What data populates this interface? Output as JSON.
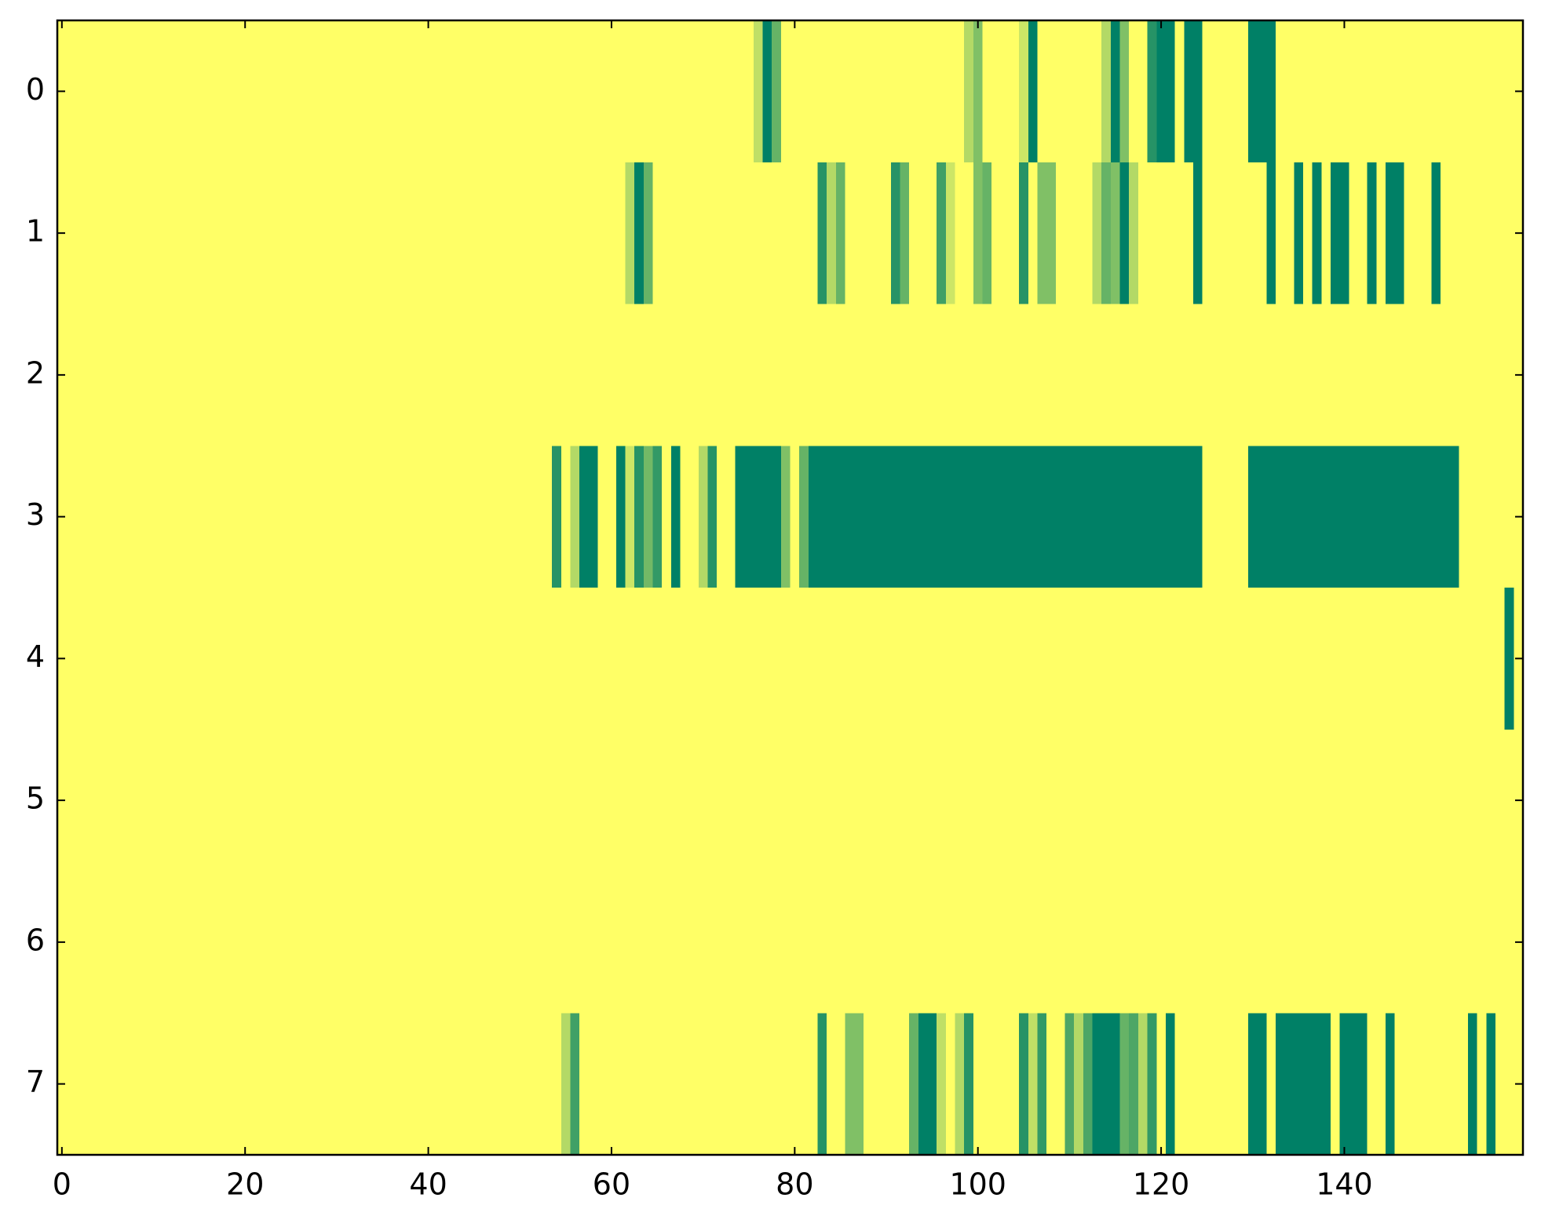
{
  "chart_data": {
    "type": "heatmap",
    "xlim": [
      -0.5,
      159.5
    ],
    "ylim": [
      7.5,
      -0.5
    ],
    "xticks": [
      0,
      20,
      40,
      60,
      80,
      100,
      120,
      140
    ],
    "yticks": [
      0,
      1,
      2,
      3,
      4,
      5,
      6,
      7
    ],
    "colorscale": {
      "low": "#ffff66",
      "high": "#008066"
    },
    "values": [
      [
        0,
        0,
        0,
        0,
        0,
        0,
        0,
        0,
        0,
        0,
        0,
        0,
        0,
        0,
        0,
        0,
        0,
        0,
        0,
        0,
        0,
        0,
        0,
        0,
        0,
        0,
        0,
        0,
        0,
        0,
        0,
        0,
        0,
        0,
        0,
        0,
        0,
        0,
        0,
        0,
        0,
        0,
        0,
        0,
        0,
        0,
        0,
        0,
        0,
        0,
        0,
        0,
        0,
        0,
        0,
        0,
        0,
        0,
        0,
        0,
        0,
        0,
        0,
        0,
        0,
        0,
        0,
        0,
        0,
        0,
        0,
        0,
        0,
        0,
        0,
        0,
        0.25,
        1,
        0.6,
        0,
        0,
        0,
        0,
        0,
        0,
        0,
        0,
        0,
        0,
        0,
        0,
        0,
        0,
        0,
        0,
        0,
        0,
        0,
        0,
        0.3,
        0.5,
        0,
        0,
        0,
        0,
        0.2,
        1,
        0,
        0,
        0,
        0,
        0,
        0,
        0,
        0.3,
        1,
        0.5,
        0,
        0,
        0.85,
        1,
        1,
        0,
        1,
        1,
        0,
        0,
        0,
        0,
        0,
        1,
        1,
        1,
        0,
        0,
        0,
        0,
        0,
        0,
        0,
        0,
        0,
        0,
        0,
        0,
        0,
        0,
        0,
        0,
        0,
        0,
        0,
        0,
        0,
        0,
        0,
        0,
        0,
        0,
        0
      ],
      [
        0,
        0,
        0,
        0,
        0,
        0,
        0,
        0,
        0,
        0,
        0,
        0,
        0,
        0,
        0,
        0,
        0,
        0,
        0,
        0,
        0,
        0,
        0,
        0,
        0,
        0,
        0,
        0,
        0,
        0,
        0,
        0,
        0,
        0,
        0,
        0,
        0,
        0,
        0,
        0,
        0,
        0,
        0,
        0,
        0,
        0,
        0,
        0,
        0,
        0,
        0,
        0,
        0,
        0,
        0,
        0,
        0,
        0,
        0,
        0,
        0,
        0,
        0.3,
        1,
        0.6,
        0,
        0,
        0,
        0,
        0,
        0,
        0,
        0,
        0,
        0,
        0,
        0,
        0,
        0,
        0,
        0,
        0,
        0,
        0.85,
        0.3,
        0.6,
        0,
        0,
        0,
        0,
        0,
        0.85,
        0.6,
        0,
        0,
        0,
        0.75,
        0.2,
        0,
        0,
        0.5,
        0.6,
        0,
        0,
        0,
        0.85,
        0,
        0.5,
        0.5,
        0,
        0,
        0,
        0,
        0.3,
        0.6,
        0.5,
        1,
        0.3,
        0,
        0,
        0,
        0,
        0,
        0,
        1,
        0,
        0,
        0,
        0,
        0,
        0,
        0,
        1,
        0,
        0,
        1,
        0,
        1,
        0,
        1,
        1,
        0,
        0,
        1,
        0,
        1,
        1,
        0,
        0,
        0,
        1,
        0,
        0,
        0,
        0,
        0,
        0,
        0,
        0,
        0
      ],
      [
        0,
        0,
        0,
        0,
        0,
        0,
        0,
        0,
        0,
        0,
        0,
        0,
        0,
        0,
        0,
        0,
        0,
        0,
        0,
        0,
        0,
        0,
        0,
        0,
        0,
        0,
        0,
        0,
        0,
        0,
        0,
        0,
        0,
        0,
        0,
        0,
        0,
        0,
        0,
        0,
        0,
        0,
        0,
        0,
        0,
        0,
        0,
        0,
        0,
        0,
        0,
        0,
        0,
        0,
        0,
        0,
        0,
        0,
        0,
        0,
        0,
        0,
        0,
        0,
        0,
        0,
        0,
        0,
        0,
        0,
        0,
        0,
        0,
        0,
        0,
        0,
        0,
        0,
        0,
        0,
        0,
        0,
        0,
        0,
        0,
        0,
        0,
        0,
        0,
        0,
        0,
        0,
        0,
        0,
        0,
        0,
        0,
        0,
        0,
        0,
        0,
        0,
        0,
        0,
        0,
        0,
        0,
        0,
        0,
        0,
        0,
        0,
        0,
        0,
        0,
        0,
        0,
        0,
        0,
        0,
        0,
        0,
        0,
        0,
        0,
        0,
        0,
        0,
        0,
        0,
        0,
        0,
        0,
        0,
        0,
        0,
        0,
        0,
        0,
        0,
        0,
        0,
        0,
        0,
        0,
        0,
        0,
        0,
        0,
        0,
        0,
        0,
        0,
        0,
        0,
        0,
        0,
        0,
        0,
        0
      ],
      [
        0,
        0,
        0,
        0,
        0,
        0,
        0,
        0,
        0,
        0,
        0,
        0,
        0,
        0,
        0,
        0,
        0,
        0,
        0,
        0,
        0,
        0,
        0,
        0,
        0,
        0,
        0,
        0,
        0,
        0,
        0,
        0,
        0,
        0,
        0,
        0,
        0,
        0,
        0,
        0,
        0,
        0,
        0,
        0,
        0,
        0,
        0,
        0,
        0,
        0,
        0,
        0,
        0,
        0,
        0.85,
        0,
        0.3,
        1,
        1,
        0,
        0,
        1,
        0.2,
        0.85,
        0.55,
        0.8,
        0,
        1,
        0,
        0,
        0.3,
        0.85,
        0,
        0,
        1,
        1,
        1,
        1,
        1,
        0.5,
        0,
        0.6,
        1,
        1,
        1,
        1,
        1,
        1,
        1,
        1,
        1,
        1,
        1,
        1,
        1,
        1,
        1,
        1,
        1,
        1,
        1,
        1,
        1,
        1,
        1,
        1,
        1,
        1,
        1,
        1,
        1,
        1,
        1,
        1,
        1,
        1,
        1,
        1,
        1,
        1,
        1,
        1,
        1,
        1,
        1,
        0,
        0,
        0,
        0,
        0,
        1,
        1,
        1,
        1,
        1,
        1,
        1,
        1,
        1,
        1,
        1,
        1,
        1,
        1,
        1,
        1,
        1,
        1,
        1,
        1,
        1,
        1,
        1,
        0,
        0,
        0,
        0,
        0,
        0,
        0
      ],
      [
        0,
        0,
        0,
        0,
        0,
        0,
        0,
        0,
        0,
        0,
        0,
        0,
        0,
        0,
        0,
        0,
        0,
        0,
        0,
        0,
        0,
        0,
        0,
        0,
        0,
        0,
        0,
        0,
        0,
        0,
        0,
        0,
        0,
        0,
        0,
        0,
        0,
        0,
        0,
        0,
        0,
        0,
        0,
        0,
        0,
        0,
        0,
        0,
        0,
        0,
        0,
        0,
        0,
        0,
        0,
        0,
        0,
        0,
        0,
        0,
        0,
        0,
        0,
        0,
        0,
        0,
        0,
        0,
        0,
        0,
        0,
        0,
        0,
        0,
        0,
        0,
        0,
        0,
        0,
        0,
        0,
        0,
        0,
        0,
        0,
        0,
        0,
        0,
        0,
        0,
        0,
        0,
        0,
        0,
        0,
        0,
        0,
        0,
        0,
        0,
        0,
        0,
        0,
        0,
        0,
        0,
        0,
        0,
        0,
        0,
        0,
        0,
        0,
        0,
        0,
        0,
        0,
        0,
        0,
        0,
        0,
        0,
        0,
        0,
        0,
        0,
        0,
        0,
        0,
        0,
        0,
        0,
        0,
        0,
        0,
        0,
        0,
        0,
        0,
        0,
        0,
        0,
        0,
        0,
        0,
        0,
        0,
        0,
        0,
        0,
        0,
        0,
        0,
        0,
        0,
        0,
        0,
        0,
        1,
        0
      ],
      [
        0,
        0,
        0,
        0,
        0,
        0,
        0,
        0,
        0,
        0,
        0,
        0,
        0,
        0,
        0,
        0,
        0,
        0,
        0,
        0,
        0,
        0,
        0,
        0,
        0,
        0,
        0,
        0,
        0,
        0,
        0,
        0,
        0,
        0,
        0,
        0,
        0,
        0,
        0,
        0,
        0,
        0,
        0,
        0,
        0,
        0,
        0,
        0,
        0,
        0,
        0,
        0,
        0,
        0,
        0,
        0,
        0,
        0,
        0,
        0,
        0,
        0,
        0,
        0,
        0,
        0,
        0,
        0,
        0,
        0,
        0,
        0,
        0,
        0,
        0,
        0,
        0,
        0,
        0,
        0,
        0,
        0,
        0,
        0,
        0,
        0,
        0,
        0,
        0,
        0,
        0,
        0,
        0,
        0,
        0,
        0,
        0,
        0,
        0,
        0,
        0,
        0,
        0,
        0,
        0,
        0,
        0,
        0,
        0,
        0,
        0,
        0,
        0,
        0,
        0,
        0,
        0,
        0,
        0,
        0,
        0,
        0,
        0,
        0,
        0,
        0,
        0,
        0,
        0,
        0,
        0,
        0,
        0,
        0,
        0,
        0,
        0,
        0,
        0,
        0,
        0,
        0,
        0,
        0,
        0,
        0,
        0,
        0,
        0,
        0,
        0,
        0,
        0,
        0,
        0,
        0,
        0,
        0,
        0,
        0
      ],
      [
        0,
        0,
        0,
        0,
        0,
        0,
        0,
        0,
        0,
        0,
        0,
        0,
        0,
        0,
        0,
        0,
        0,
        0,
        0,
        0,
        0,
        0,
        0,
        0,
        0,
        0,
        0,
        0,
        0,
        0,
        0,
        0,
        0,
        0,
        0,
        0,
        0,
        0,
        0,
        0,
        0,
        0,
        0,
        0,
        0,
        0,
        0,
        0,
        0,
        0,
        0,
        0,
        0,
        0,
        0,
        0,
        0,
        0,
        0,
        0,
        0,
        0,
        0,
        0,
        0,
        0,
        0,
        0,
        0,
        0,
        0,
        0,
        0,
        0,
        0,
        0,
        0,
        0,
        0,
        0,
        0,
        0,
        0,
        0,
        0,
        0,
        0,
        0,
        0,
        0,
        0,
        0,
        0,
        0,
        0,
        0,
        0,
        0,
        0,
        0,
        0,
        0,
        0,
        0,
        0,
        0,
        0,
        0,
        0,
        0,
        0,
        0,
        0,
        0,
        0,
        0,
        0,
        0,
        0,
        0,
        0,
        0,
        0,
        0,
        0,
        0,
        0,
        0,
        0,
        0,
        0,
        0,
        0,
        0,
        0,
        0,
        0,
        0,
        0,
        0,
        0,
        0,
        0,
        0,
        0,
        0,
        0,
        0,
        0,
        0,
        0,
        0,
        0,
        0,
        0,
        0,
        0,
        0,
        0,
        0
      ],
      [
        0,
        0,
        0,
        0,
        0,
        0,
        0,
        0,
        0,
        0,
        0,
        0,
        0,
        0,
        0,
        0,
        0,
        0,
        0,
        0,
        0,
        0,
        0,
        0,
        0,
        0,
        0,
        0,
        0,
        0,
        0,
        0,
        0,
        0,
        0,
        0,
        0,
        0,
        0,
        0,
        0,
        0,
        0,
        0,
        0,
        0,
        0,
        0,
        0,
        0,
        0,
        0,
        0,
        0,
        0,
        0.3,
        0.75,
        0,
        0,
        0,
        0,
        0,
        0,
        0,
        0,
        0,
        0,
        0,
        0,
        0,
        0,
        0,
        0,
        0,
        0,
        0,
        0,
        0,
        0,
        0,
        0,
        0,
        0,
        0.85,
        0,
        0,
        0.5,
        0.5,
        0,
        0,
        0,
        0,
        0,
        0.6,
        1,
        1,
        0.25,
        0,
        0.3,
        0.85,
        0,
        0,
        0,
        0,
        0,
        0.85,
        0.25,
        0.8,
        0,
        0,
        0.7,
        0.3,
        0.7,
        1,
        1,
        1,
        0.6,
        0.7,
        0.3,
        0.8,
        0,
        1,
        0,
        0,
        0,
        0,
        0,
        0,
        0,
        0,
        1,
        1,
        0,
        1,
        1,
        1,
        1,
        1,
        1,
        0,
        1,
        1,
        1,
        0,
        0,
        1,
        0,
        0,
        0,
        0,
        0,
        0,
        0,
        0,
        1,
        0,
        1,
        0,
        0,
        0
      ]
    ]
  }
}
